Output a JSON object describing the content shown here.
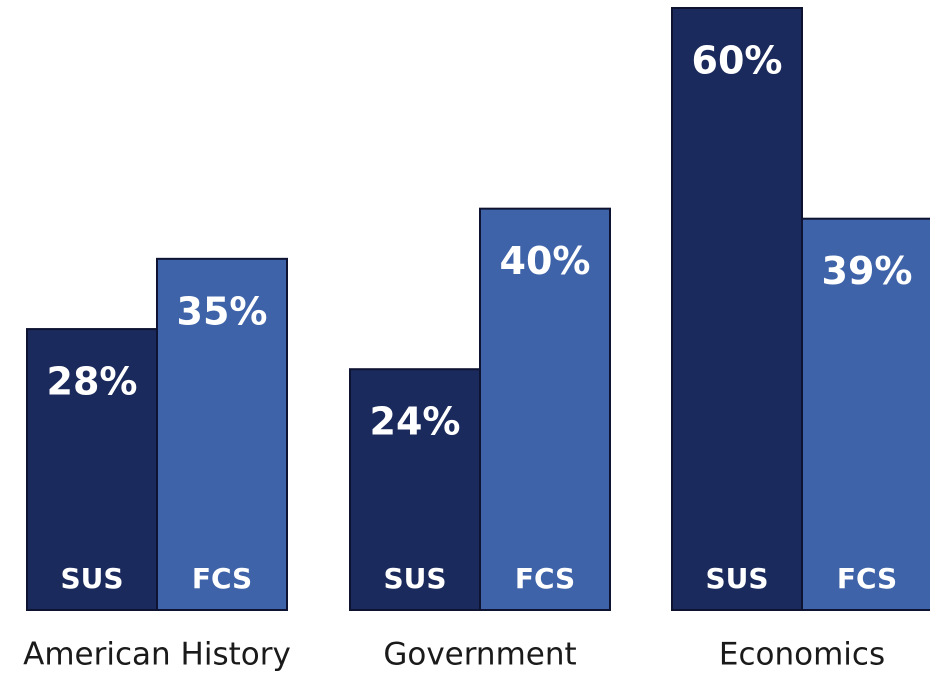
{
  "chart_data": {
    "type": "bar",
    "categories": [
      "American History",
      "Government",
      "Economics"
    ],
    "series": [
      {
        "name": "SUS",
        "color": "#1b2a5c",
        "values": [
          28,
          24,
          60
        ],
        "value_labels": [
          "28%",
          "24%",
          "60%"
        ]
      },
      {
        "name": "FCS",
        "color": "#3e63a8",
        "values": [
          35,
          40,
          39
        ],
        "value_labels": [
          "35%",
          "40%",
          "39%"
        ]
      }
    ],
    "ylim": [
      0,
      60
    ]
  }
}
